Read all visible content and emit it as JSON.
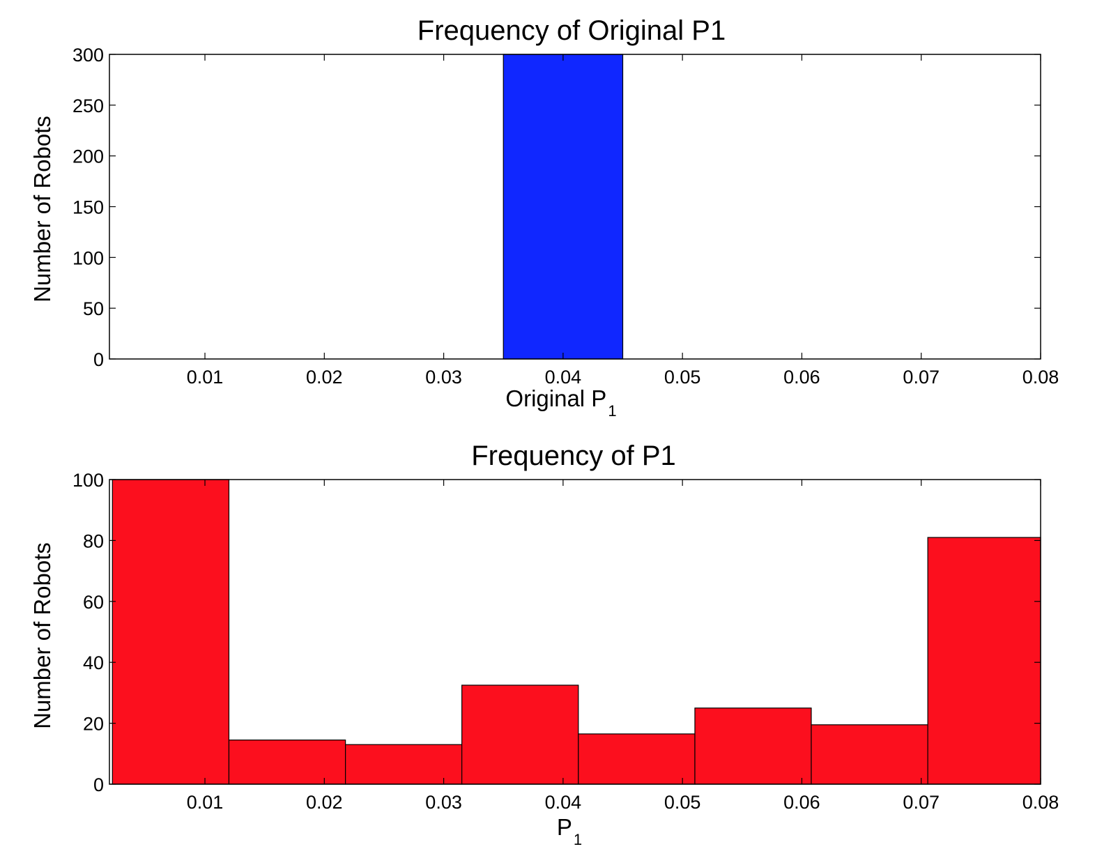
{
  "chart_data": [
    {
      "type": "bar",
      "title": "Frequency of Original P1",
      "xlabel": {
        "main": "Original P",
        "subscript": "1"
      },
      "ylabel": "Number of Robots",
      "xlim": [
        0.002,
        0.08
      ],
      "ylim": [
        0,
        300
      ],
      "xticks": [
        "0.01",
        "0.02",
        "0.03",
        "0.04",
        "0.05",
        "0.06",
        "0.07",
        "0.08"
      ],
      "yticks": [
        "0",
        "50",
        "100",
        "150",
        "200",
        "250",
        "300"
      ],
      "grid": false,
      "color": "#1027ff",
      "bins": [
        {
          "x0": 0.035,
          "x1": 0.045,
          "value": 300
        }
      ]
    },
    {
      "type": "bar",
      "title": "Frequency of P1",
      "xlabel": {
        "main": "P",
        "subscript": "1"
      },
      "ylabel": "Number of Robots",
      "xlim": [
        0.002,
        0.08
      ],
      "ylim": [
        0,
        100
      ],
      "xticks": [
        "0.01",
        "0.02",
        "0.03",
        "0.04",
        "0.05",
        "0.06",
        "0.07",
        "0.08"
      ],
      "yticks": [
        "0",
        "20",
        "40",
        "60",
        "80",
        "100"
      ],
      "grid": false,
      "color": "#fc0f1e",
      "bins": [
        {
          "x0": 0.00225,
          "x1": 0.01201,
          "value": 100
        },
        {
          "x0": 0.01201,
          "x1": 0.02177,
          "value": 14.5
        },
        {
          "x0": 0.02177,
          "x1": 0.03152,
          "value": 13
        },
        {
          "x0": 0.03152,
          "x1": 0.04128,
          "value": 32.5
        },
        {
          "x0": 0.04128,
          "x1": 0.05104,
          "value": 16.5
        },
        {
          "x0": 0.05104,
          "x1": 0.06079,
          "value": 25
        },
        {
          "x0": 0.06079,
          "x1": 0.07055,
          "value": 19.5
        },
        {
          "x0": 0.07055,
          "x1": 0.08031,
          "value": 81
        }
      ]
    }
  ]
}
